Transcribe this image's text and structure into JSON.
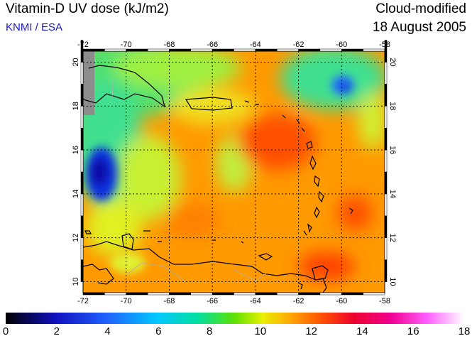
{
  "header": {
    "title": "Vitamin-D UV dose (kJ/m2)",
    "credit": "KNMI / ESA",
    "mode": "Cloud-modified",
    "date": "18 August 2005"
  },
  "map": {
    "lon_range": [
      -72,
      -58
    ],
    "lat_range": [
      9.5,
      20.5
    ],
    "lon_ticks": [
      "-72",
      "-70",
      "-68",
      "-66",
      "-64",
      "-62",
      "-60",
      "-58"
    ],
    "lat_ticks": [
      "10",
      "12",
      "14",
      "16",
      "18",
      "20"
    ],
    "grid_style": "dotted"
  },
  "colorbar": {
    "min": 0,
    "max": 18,
    "labels": [
      "0",
      "2",
      "4",
      "6",
      "8",
      "10",
      "12",
      "14",
      "16",
      "18"
    ],
    "colors": [
      "#000000",
      "#1010c0",
      "#2060ff",
      "#00c8ff",
      "#00e0a0",
      "#60e000",
      "#e8f000",
      "#ffa800",
      "#ff5000",
      "#ee0030",
      "#f00090",
      "#ff60ff",
      "#ffffff"
    ]
  }
}
